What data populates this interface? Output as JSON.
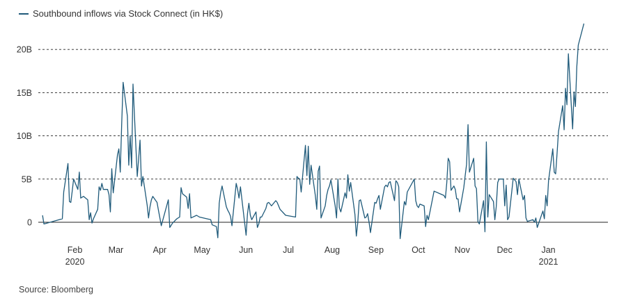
{
  "legend": {
    "label": "Southbound inflows via Stock Connect (in HK$)"
  },
  "source": "Source: Bloomberg",
  "colors": {
    "line": "#1f5a7a",
    "grid": "#222222",
    "text": "#333333"
  },
  "chart_data": {
    "type": "line",
    "title": "",
    "xlabel": "",
    "ylabel": "",
    "ylim": [
      -2,
      23
    ],
    "xlim": [
      "2020-01-13",
      "2021-02-19"
    ],
    "y_ticks": [
      {
        "value": 0,
        "label": "0"
      },
      {
        "value": 5,
        "label": "5B"
      },
      {
        "value": 10,
        "label": "10B"
      },
      {
        "value": 15,
        "label": "15B"
      },
      {
        "value": 20,
        "label": "20B"
      }
    ],
    "x_ticks": [
      {
        "date": "2020-02-01",
        "label": "Feb",
        "sublabel": "2020"
      },
      {
        "date": "2020-03-01",
        "label": "Mar",
        "sublabel": ""
      },
      {
        "date": "2020-04-01",
        "label": "Apr",
        "sublabel": ""
      },
      {
        "date": "2020-05-01",
        "label": "May",
        "sublabel": ""
      },
      {
        "date": "2020-06-01",
        "label": "Jun",
        "sublabel": ""
      },
      {
        "date": "2020-07-01",
        "label": "Jul",
        "sublabel": ""
      },
      {
        "date": "2020-08-01",
        "label": "Aug",
        "sublabel": ""
      },
      {
        "date": "2020-09-01",
        "label": "Sep",
        "sublabel": ""
      },
      {
        "date": "2020-10-01",
        "label": "Oct",
        "sublabel": ""
      },
      {
        "date": "2020-11-01",
        "label": "Nov",
        "sublabel": ""
      },
      {
        "date": "2020-12-01",
        "label": "Dec",
        "sublabel": ""
      },
      {
        "date": "2021-01-01",
        "label": "Jan",
        "sublabel": "2021"
      }
    ],
    "grid": "horizontal dashed",
    "legend_position": "top-left",
    "series": [
      {
        "name": "Southbound inflows via Stock Connect (in HK$)",
        "points": [
          [
            "2020-01-16",
            0.8
          ],
          [
            "2020-01-17",
            -0.2
          ],
          [
            "2020-01-30",
            0.4
          ],
          [
            "2020-01-31",
            3.5
          ],
          [
            "2020-02-03",
            6.8
          ],
          [
            "2020-02-04",
            2.4
          ],
          [
            "2020-02-05",
            2.3
          ],
          [
            "2020-02-06",
            3.6
          ],
          [
            "2020-02-07",
            5.0
          ],
          [
            "2020-02-10",
            3.8
          ],
          [
            "2020-02-11",
            5.8
          ],
          [
            "2020-02-12",
            2.8
          ],
          [
            "2020-02-13",
            2.9
          ],
          [
            "2020-02-14",
            3.0
          ],
          [
            "2020-02-17",
            2.6
          ],
          [
            "2020-02-18",
            0.3
          ],
          [
            "2020-02-19",
            1.1
          ],
          [
            "2020-02-20",
            -0.1
          ],
          [
            "2020-02-21",
            0.4
          ],
          [
            "2020-02-24",
            1.5
          ],
          [
            "2020-02-25",
            4.1
          ],
          [
            "2020-02-26",
            3.7
          ],
          [
            "2020-02-27",
            4.5
          ],
          [
            "2020-02-28",
            3.8
          ],
          [
            "2020-03-02",
            3.8
          ],
          [
            "2020-03-03",
            3.2
          ],
          [
            "2020-03-04",
            1.2
          ],
          [
            "2020-03-05",
            6.2
          ],
          [
            "2020-03-06",
            3.4
          ],
          [
            "2020-03-09",
            7.8
          ],
          [
            "2020-03-10",
            8.5
          ],
          [
            "2020-03-11",
            5.8
          ],
          [
            "2020-03-12",
            11.5
          ],
          [
            "2020-03-13",
            16.2
          ],
          [
            "2020-03-16",
            12.3
          ],
          [
            "2020-03-17",
            6.6
          ],
          [
            "2020-03-18",
            10.0
          ],
          [
            "2020-03-19",
            6.3
          ],
          [
            "2020-03-20",
            16.0
          ],
          [
            "2020-03-23",
            5.3
          ],
          [
            "2020-03-24",
            7.4
          ],
          [
            "2020-03-25",
            9.5
          ],
          [
            "2020-03-26",
            4.2
          ],
          [
            "2020-03-27",
            5.3
          ],
          [
            "2020-03-30",
            2.0
          ],
          [
            "2020-03-31",
            0.5
          ],
          [
            "2020-04-01",
            1.8
          ],
          [
            "2020-04-02",
            2.6
          ],
          [
            "2020-04-03",
            3.0
          ],
          [
            "2020-04-06",
            2.3
          ],
          [
            "2020-04-07",
            1.4
          ],
          [
            "2020-04-08",
            0.5
          ],
          [
            "2020-04-09",
            -0.4
          ],
          [
            "2020-04-14",
            2.6
          ],
          [
            "2020-04-15",
            -0.6
          ],
          [
            "2020-04-17",
            -0.1
          ],
          [
            "2020-04-20",
            0.4
          ],
          [
            "2020-04-22",
            0.6
          ],
          [
            "2020-04-23",
            4.0
          ],
          [
            "2020-04-24",
            3.3
          ],
          [
            "2020-04-27",
            2.9
          ],
          [
            "2020-04-28",
            1.6
          ],
          [
            "2020-04-29",
            3.3
          ],
          [
            "2020-04-30",
            0.5
          ],
          [
            "2020-05-04",
            0.8
          ],
          [
            "2020-05-06",
            0.6
          ],
          [
            "2020-05-14",
            0.3
          ],
          [
            "2020-05-15",
            -0.3
          ],
          [
            "2020-05-18",
            -0.5
          ],
          [
            "2020-05-19",
            -1.8
          ],
          [
            "2020-05-20",
            2.2
          ],
          [
            "2020-05-21",
            3.4
          ],
          [
            "2020-05-22",
            4.2
          ],
          [
            "2020-05-25",
            1.8
          ],
          [
            "2020-05-26",
            1.4
          ],
          [
            "2020-05-27",
            1.1
          ],
          [
            "2020-05-28",
            0.7
          ],
          [
            "2020-05-29",
            -0.4
          ],
          [
            "2020-06-01",
            4.5
          ],
          [
            "2020-06-02",
            3.8
          ],
          [
            "2020-06-03",
            2.8
          ],
          [
            "2020-06-04",
            4.1
          ],
          [
            "2020-06-05",
            2.7
          ],
          [
            "2020-06-08",
            -1.5
          ],
          [
            "2020-06-09",
            1.0
          ],
          [
            "2020-06-10",
            2.2
          ],
          [
            "2020-06-11",
            0.8
          ],
          [
            "2020-06-12",
            0.3
          ],
          [
            "2020-06-15",
            1.2
          ],
          [
            "2020-06-16",
            -0.6
          ],
          [
            "2020-06-17",
            -0.2
          ],
          [
            "2020-06-18",
            0.6
          ],
          [
            "2020-06-19",
            0.6
          ],
          [
            "2020-06-22",
            1.6
          ],
          [
            "2020-06-23",
            2.2
          ],
          [
            "2020-06-24",
            2.3
          ],
          [
            "2020-06-26",
            1.9
          ],
          [
            "2020-06-29",
            2.5
          ],
          [
            "2020-06-30",
            2.3
          ],
          [
            "2020-07-02",
            1.5
          ],
          [
            "2020-07-06",
            0.8
          ],
          [
            "2020-07-13",
            0.6
          ],
          [
            "2020-07-14",
            5.3
          ],
          [
            "2020-07-15",
            5.1
          ],
          [
            "2020-07-16",
            5.0
          ],
          [
            "2020-07-17",
            3.5
          ],
          [
            "2020-07-20",
            8.9
          ],
          [
            "2020-07-21",
            5.4
          ],
          [
            "2020-07-22",
            8.8
          ],
          [
            "2020-07-23",
            4.4
          ],
          [
            "2020-07-24",
            6.6
          ],
          [
            "2020-07-27",
            3.1
          ],
          [
            "2020-07-28",
            1.5
          ],
          [
            "2020-07-29",
            5.9
          ],
          [
            "2020-07-30",
            6.5
          ],
          [
            "2020-07-31",
            0.5
          ],
          [
            "2020-08-03",
            1.9
          ],
          [
            "2020-08-04",
            3.1
          ],
          [
            "2020-08-05",
            3.8
          ],
          [
            "2020-08-06",
            4.2
          ],
          [
            "2020-08-07",
            4.9
          ],
          [
            "2020-08-10",
            1.9
          ],
          [
            "2020-08-11",
            0.5
          ],
          [
            "2020-08-12",
            5.0
          ],
          [
            "2020-08-13",
            1.7
          ],
          [
            "2020-08-14",
            1.2
          ],
          [
            "2020-08-17",
            3.4
          ],
          [
            "2020-08-18",
            2.8
          ],
          [
            "2020-08-19",
            5.5
          ],
          [
            "2020-08-20",
            3.6
          ],
          [
            "2020-08-21",
            4.6
          ],
          [
            "2020-08-24",
            0.9
          ],
          [
            "2020-08-25",
            -1.6
          ],
          [
            "2020-08-26",
            -0.1
          ],
          [
            "2020-08-27",
            2.5
          ],
          [
            "2020-08-28",
            2.6
          ],
          [
            "2020-08-31",
            0.5
          ],
          [
            "2020-09-01",
            0.6
          ],
          [
            "2020-09-02",
            1.0
          ],
          [
            "2020-09-03",
            0.0
          ],
          [
            "2020-09-04",
            -1.2
          ],
          [
            "2020-09-07",
            2.3
          ],
          [
            "2020-09-08",
            2.2
          ],
          [
            "2020-09-09",
            2.7
          ],
          [
            "2020-09-10",
            3.1
          ],
          [
            "2020-09-11",
            1.5
          ],
          [
            "2020-09-14",
            4.1
          ],
          [
            "2020-09-15",
            4.3
          ],
          [
            "2020-09-16",
            4.1
          ],
          [
            "2020-09-17",
            4.6
          ],
          [
            "2020-09-18",
            4.7
          ],
          [
            "2020-09-21",
            2.5
          ],
          [
            "2020-09-22",
            4.8
          ],
          [
            "2020-09-23",
            4.6
          ],
          [
            "2020-09-24",
            4.1
          ],
          [
            "2020-09-25",
            -1.9
          ],
          [
            "2020-09-28",
            2.4
          ],
          [
            "2020-09-29",
            2.0
          ],
          [
            "2020-09-30",
            3.5
          ],
          [
            "2020-10-05",
            5.0
          ],
          [
            "2020-10-06",
            2.5
          ],
          [
            "2020-10-07",
            1.9
          ],
          [
            "2020-10-08",
            1.7
          ],
          [
            "2020-10-09",
            2.1
          ],
          [
            "2020-10-12",
            1.9
          ],
          [
            "2020-10-13",
            -0.5
          ],
          [
            "2020-10-14",
            0.8
          ],
          [
            "2020-10-15",
            0.3
          ],
          [
            "2020-10-19",
            3.6
          ],
          [
            "2020-10-26",
            3.1
          ],
          [
            "2020-10-27",
            2.8
          ],
          [
            "2020-10-28",
            4.6
          ],
          [
            "2020-10-29",
            7.4
          ],
          [
            "2020-10-30",
            7.0
          ],
          [
            "2020-10-31",
            3.7
          ],
          [
            "2020-11-02",
            4.2
          ],
          [
            "2020-11-03",
            3.8
          ],
          [
            "2020-11-04",
            2.7
          ],
          [
            "2020-11-05",
            2.7
          ],
          [
            "2020-11-06",
            1.2
          ],
          [
            "2020-11-09",
            4.0
          ],
          [
            "2020-11-10",
            5.4
          ],
          [
            "2020-11-11",
            6.7
          ],
          [
            "2020-11-12",
            11.3
          ],
          [
            "2020-11-13",
            5.8
          ],
          [
            "2020-11-16",
            7.4
          ],
          [
            "2020-11-17",
            4.2
          ],
          [
            "2020-11-18",
            3.9
          ],
          [
            "2020-11-19",
            0.1
          ],
          [
            "2020-11-20",
            -0.2
          ],
          [
            "2020-11-23",
            2.5
          ],
          [
            "2020-11-24",
            -1.1
          ],
          [
            "2020-11-25",
            9.3
          ],
          [
            "2020-11-26",
            0.6
          ],
          [
            "2020-11-27",
            3.2
          ],
          [
            "2020-11-30",
            2.4
          ],
          [
            "2020-12-01",
            0.3
          ],
          [
            "2020-12-02",
            1.8
          ],
          [
            "2020-12-03",
            4.6
          ],
          [
            "2020-12-04",
            5.0
          ],
          [
            "2020-12-07",
            5.0
          ],
          [
            "2020-12-08",
            1.9
          ],
          [
            "2020-12-09",
            4.3
          ],
          [
            "2020-12-10",
            0.3
          ],
          [
            "2020-12-11",
            0.6
          ],
          [
            "2020-12-14",
            5.1
          ],
          [
            "2020-12-15",
            4.9
          ],
          [
            "2020-12-16",
            4.7
          ],
          [
            "2020-12-17",
            3.2
          ],
          [
            "2020-12-18",
            5.0
          ],
          [
            "2020-12-21",
            2.6
          ],
          [
            "2020-12-22",
            3.1
          ],
          [
            "2020-12-23",
            0.5
          ],
          [
            "2020-12-24",
            0.1
          ],
          [
            "2020-12-28",
            0.3
          ],
          [
            "2020-12-29",
            0.0
          ],
          [
            "2020-12-30",
            0.5
          ],
          [
            "2020-12-31",
            -0.6
          ],
          [
            "2021-01-04",
            1.3
          ],
          [
            "2021-01-05",
            0.4
          ],
          [
            "2021-01-06",
            3.1
          ],
          [
            "2021-01-07",
            1.9
          ],
          [
            "2021-01-08",
            4.8
          ],
          [
            "2021-01-11",
            8.5
          ],
          [
            "2021-01-12",
            5.8
          ],
          [
            "2021-01-13",
            5.6
          ],
          [
            "2021-01-14",
            7.9
          ],
          [
            "2021-01-15",
            10.5
          ],
          [
            "2021-01-18",
            13.5
          ],
          [
            "2021-01-19",
            10.7
          ],
          [
            "2021-01-20",
            15.5
          ],
          [
            "2021-01-21",
            13.6
          ],
          [
            "2021-01-22",
            19.5
          ],
          [
            "2021-01-25",
            10.8
          ],
          [
            "2021-01-26",
            15.1
          ],
          [
            "2021-01-27",
            13.4
          ],
          [
            "2021-01-28",
            18.0
          ],
          [
            "2021-01-29",
            20.5
          ],
          [
            "2021-02-02",
            23.0
          ]
        ]
      }
    ]
  }
}
